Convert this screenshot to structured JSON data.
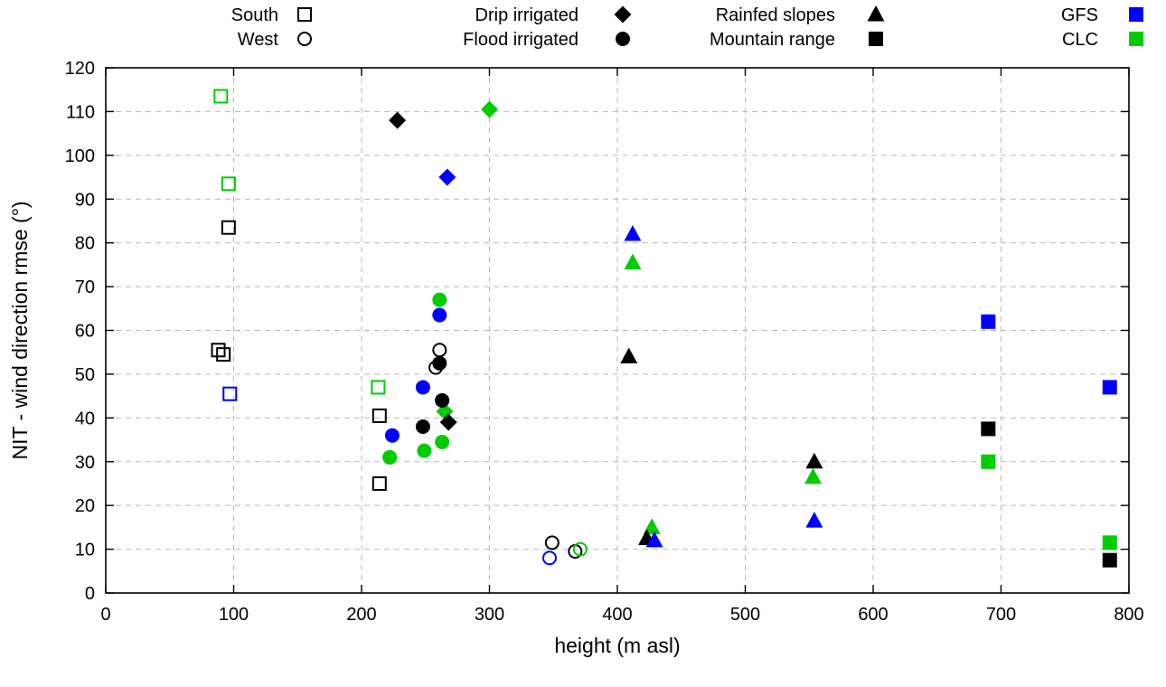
{
  "chart_data": {
    "type": "scatter",
    "title": "",
    "xlabel": "height (m asl)",
    "ylabel": "NIT - wind direction rmse (°)",
    "xlim": [
      0,
      800
    ],
    "ylim": [
      0,
      120
    ],
    "xticks": [
      0,
      100,
      200,
      300,
      400,
      500,
      600,
      700,
      800
    ],
    "yticks": [
      0,
      10,
      20,
      30,
      40,
      50,
      60,
      70,
      80,
      90,
      100,
      110,
      120
    ],
    "grid": true,
    "colors": {
      "black": "#000000",
      "blue": "#0000ff",
      "green": "#00cc00"
    },
    "legend": {
      "position": "top",
      "entries": [
        {
          "label": "South",
          "marker": "open-square",
          "color": "black",
          "col": 0,
          "row": 0
        },
        {
          "label": "West",
          "marker": "open-circle",
          "color": "black",
          "col": 0,
          "row": 1
        },
        {
          "label": "Drip irrigated",
          "marker": "filled-diamond",
          "color": "black",
          "col": 1,
          "row": 0
        },
        {
          "label": "Flood irrigated",
          "marker": "filled-circle",
          "color": "black",
          "col": 1,
          "row": 1
        },
        {
          "label": "Rainfed slopes",
          "marker": "filled-triangle",
          "color": "black",
          "col": 2,
          "row": 0
        },
        {
          "label": "Mountain range",
          "marker": "filled-square",
          "color": "black",
          "col": 2,
          "row": 1
        },
        {
          "label": "GFS",
          "marker": "filled-square",
          "color": "blue",
          "col": 3,
          "row": 0
        },
        {
          "label": "CLC",
          "marker": "filled-square",
          "color": "green",
          "col": 3,
          "row": 1
        }
      ]
    },
    "points": [
      {
        "marker": "open-square",
        "color": "green",
        "x": 90,
        "y": 113.5
      },
      {
        "marker": "open-square",
        "color": "green",
        "x": 96,
        "y": 93.5
      },
      {
        "marker": "open-square",
        "color": "black",
        "x": 96,
        "y": 83.5
      },
      {
        "marker": "open-square",
        "color": "black",
        "x": 88,
        "y": 55.5
      },
      {
        "marker": "open-square",
        "color": "black",
        "x": 92,
        "y": 54.5
      },
      {
        "marker": "open-square",
        "color": "blue",
        "x": 97,
        "y": 45.5
      },
      {
        "marker": "open-square",
        "color": "green",
        "x": 213,
        "y": 47
      },
      {
        "marker": "open-square",
        "color": "black",
        "x": 214,
        "y": 40.5
      },
      {
        "marker": "open-square",
        "color": "black",
        "x": 214,
        "y": 25
      },
      {
        "marker": "open-circle",
        "color": "black",
        "x": 261,
        "y": 55.5
      },
      {
        "marker": "open-circle",
        "color": "black",
        "x": 258,
        "y": 51.5
      },
      {
        "marker": "open-circle",
        "color": "black",
        "x": 349,
        "y": 11.5
      },
      {
        "marker": "open-circle",
        "color": "blue",
        "x": 347,
        "y": 8
      },
      {
        "marker": "open-circle",
        "color": "black",
        "x": 367,
        "y": 9.5
      },
      {
        "marker": "open-circle",
        "color": "green",
        "x": 371,
        "y": 10
      },
      {
        "marker": "filled-diamond",
        "color": "black",
        "x": 228,
        "y": 108
      },
      {
        "marker": "filled-diamond",
        "color": "green",
        "x": 300,
        "y": 110.5
      },
      {
        "marker": "filled-diamond",
        "color": "blue",
        "x": 267,
        "y": 95
      },
      {
        "marker": "filled-diamond",
        "color": "green",
        "x": 265,
        "y": 41.5
      },
      {
        "marker": "filled-diamond",
        "color": "black",
        "x": 268,
        "y": 39
      },
      {
        "marker": "filled-circle",
        "color": "green",
        "x": 261,
        "y": 67
      },
      {
        "marker": "filled-circle",
        "color": "blue",
        "x": 261,
        "y": 63.5
      },
      {
        "marker": "filled-circle",
        "color": "black",
        "x": 261,
        "y": 52.5
      },
      {
        "marker": "filled-circle",
        "color": "blue",
        "x": 248,
        "y": 47
      },
      {
        "marker": "filled-circle",
        "color": "black",
        "x": 263,
        "y": 44
      },
      {
        "marker": "filled-circle",
        "color": "black",
        "x": 248,
        "y": 38
      },
      {
        "marker": "filled-circle",
        "color": "blue",
        "x": 224,
        "y": 36
      },
      {
        "marker": "filled-circle",
        "color": "green",
        "x": 263,
        "y": 34.5
      },
      {
        "marker": "filled-circle",
        "color": "green",
        "x": 249,
        "y": 32.5
      },
      {
        "marker": "filled-circle",
        "color": "green",
        "x": 222,
        "y": 31
      },
      {
        "marker": "filled-triangle",
        "color": "blue",
        "x": 412,
        "y": 82
      },
      {
        "marker": "filled-triangle",
        "color": "green",
        "x": 412,
        "y": 75.5
      },
      {
        "marker": "filled-triangle",
        "color": "black",
        "x": 409,
        "y": 54
      },
      {
        "marker": "filled-triangle",
        "color": "black",
        "x": 554,
        "y": 30
      },
      {
        "marker": "filled-triangle",
        "color": "green",
        "x": 553,
        "y": 26.5
      },
      {
        "marker": "filled-triangle",
        "color": "blue",
        "x": 554,
        "y": 16.5
      },
      {
        "marker": "filled-triangle",
        "color": "green",
        "x": 427,
        "y": 15
      },
      {
        "marker": "filled-triangle",
        "color": "black",
        "x": 423,
        "y": 12.5
      },
      {
        "marker": "filled-triangle",
        "color": "blue",
        "x": 429,
        "y": 12
      },
      {
        "marker": "filled-square",
        "color": "blue",
        "x": 690,
        "y": 62
      },
      {
        "marker": "filled-square",
        "color": "blue",
        "x": 785,
        "y": 47
      },
      {
        "marker": "filled-square",
        "color": "black",
        "x": 690,
        "y": 37.5
      },
      {
        "marker": "filled-square",
        "color": "green",
        "x": 690,
        "y": 30
      },
      {
        "marker": "filled-square",
        "color": "green",
        "x": 785,
        "y": 11.5
      },
      {
        "marker": "filled-square",
        "color": "black",
        "x": 785,
        "y": 7.5
      }
    ]
  }
}
